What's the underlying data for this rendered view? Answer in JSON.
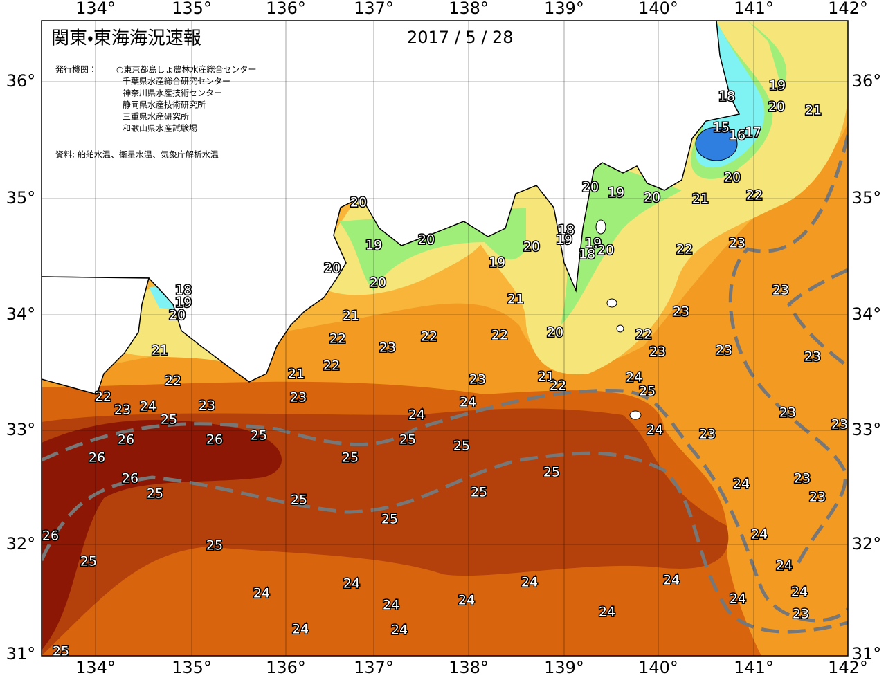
{
  "header": {
    "title": "関東・東海海況速報",
    "date": "2017 / 5 / 28",
    "issuer_label": "発行機関：",
    "issuers": [
      "○東京都島しょ農林水産総合センター",
      "千葉県水産総合研究センター",
      "神奈川県水産技術センター",
      "静岡県水産技術研究所",
      "三重県水産研究所",
      "和歌山県水産試験場"
    ],
    "source": "資料: 船舶水温、衛星水温、気象庁解析水温"
  },
  "axes": {
    "longitudes": [
      "134°",
      "135°",
      "136°",
      "137°",
      "138°",
      "139°",
      "140°",
      "141°",
      "142°"
    ],
    "latitudes": [
      "36°",
      "35°",
      "34°",
      "33°",
      "32°",
      "31°"
    ]
  },
  "contour_labels": [
    18,
    19,
    20,
    21,
    15,
    16,
    17,
    20,
    21,
    22,
    20,
    19,
    20,
    18,
    19,
    19,
    18,
    20,
    20,
    19,
    20,
    20,
    19,
    20,
    20,
    18,
    19,
    20,
    21,
    21,
    22,
    23,
    23,
    23,
    22,
    22,
    22,
    20,
    22,
    23,
    23,
    23,
    23,
    21,
    22,
    21,
    22,
    23,
    21,
    22,
    24,
    25,
    22,
    23,
    24,
    25,
    23,
    24,
    24,
    23,
    23,
    23,
    24,
    23,
    26,
    26,
    25,
    25,
    25,
    25,
    26,
    25,
    26,
    25,
    25,
    25,
    25,
    24,
    23,
    23,
    24,
    26,
    25,
    25,
    24,
    24,
    24,
    24,
    24,
    24,
    24,
    24,
    24,
    24,
    23,
    24,
    24,
    25
  ]
}
